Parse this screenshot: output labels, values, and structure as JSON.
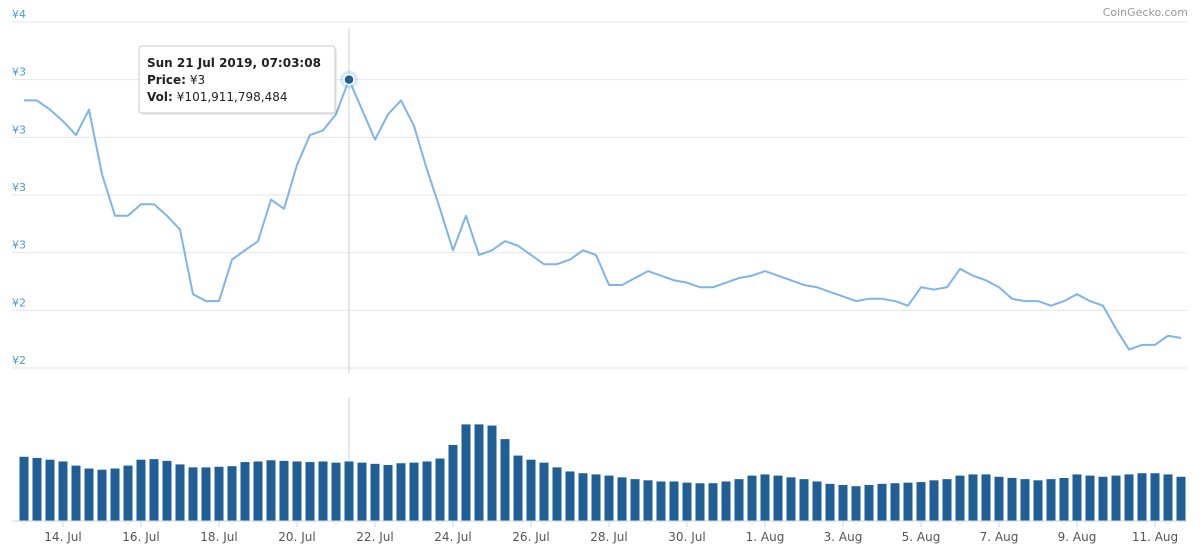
{
  "chart_data": {
    "type": "line",
    "credit": "CoinGecko.com",
    "categories": [
      null,
      null,
      null,
      "14. Jul",
      null,
      null,
      null,
      null,
      null,
      "16. Jul",
      null,
      null,
      null,
      null,
      null,
      "18. Jul",
      null,
      null,
      null,
      null,
      null,
      "20. Jul",
      null,
      null,
      null,
      null,
      null,
      "22. Jul",
      null,
      null,
      null,
      null,
      null,
      "24. Jul",
      null,
      null,
      null,
      null,
      null,
      "26. Jul",
      null,
      null,
      null,
      null,
      null,
      "28. Jul",
      null,
      null,
      null,
      null,
      null,
      "30. Jul",
      null,
      null,
      null,
      null,
      null,
      "1. Aug",
      null,
      null,
      null,
      null,
      null,
      "3. Aug",
      null,
      null,
      null,
      null,
      null,
      "5. Aug",
      null,
      null,
      null,
      null,
      null,
      "7. Aug",
      null,
      null,
      null,
      null,
      null,
      "9. Aug",
      null,
      null,
      null,
      null,
      null,
      "11. Aug",
      null,
      null
    ],
    "values": [
      3.16,
      3.16,
      3.12,
      3.07,
      3.01,
      3.12,
      2.84,
      2.66,
      2.66,
      2.71,
      2.71,
      2.66,
      2.6,
      2.32,
      2.29,
      2.29,
      2.47,
      2.51,
      2.55,
      2.73,
      2.69,
      2.88,
      3.01,
      3.03,
      3.1,
      3.25,
      3.12,
      2.99,
      3.1,
      3.16,
      3.05,
      2.86,
      2.69,
      2.51,
      2.66,
      2.49,
      2.51,
      2.55,
      2.53,
      2.49,
      2.45,
      2.45,
      2.47,
      2.51,
      2.49,
      2.36,
      2.36,
      2.39,
      2.42,
      2.4,
      2.38,
      2.37,
      2.35,
      2.35,
      2.37,
      2.39,
      2.4,
      2.42,
      2.4,
      2.38,
      2.36,
      2.35,
      2.33,
      2.31,
      2.29,
      2.3,
      2.3,
      2.29,
      2.27,
      2.35,
      2.34,
      2.35,
      2.43,
      2.4,
      2.38,
      2.35,
      2.3,
      2.29,
      2.29,
      2.27,
      2.29,
      2.32,
      2.29,
      2.27,
      2.17,
      2.08,
      2.1,
      2.1,
      2.14,
      2.13
    ],
    "color": "#7cb5ec",
    "ylim": [
      2.0,
      3.5
    ],
    "yticks": [
      {
        "value": 3.5,
        "label": "¥4"
      },
      {
        "value": 3.25,
        "label": "¥3"
      },
      {
        "value": 3.0,
        "label": "¥3"
      },
      {
        "value": 2.75,
        "label": "¥3"
      },
      {
        "value": 2.5,
        "label": "¥3"
      },
      {
        "value": 2.25,
        "label": "¥2"
      },
      {
        "value": 2.0,
        "label": "¥2"
      }
    ],
    "grid": true,
    "volume": {
      "type": "bar",
      "color": "#1f5f96",
      "ylim": [
        0,
        209000000000.0
      ],
      "values": [
        110000000000.0,
        108000000000.0,
        105000000000.0,
        102000000000.0,
        95000000000.0,
        90000000000.0,
        88000000000.0,
        90000000000.0,
        95000000000.0,
        105000000000.0,
        106000000000.0,
        103000000000.0,
        97000000000.0,
        92000000000.0,
        92000000000.0,
        93000000000.0,
        94000000000.0,
        101000000000.0,
        102000000000.0,
        104000000000.0,
        103000000000.0,
        102000000000.0,
        101000000000.0,
        102000000000.0,
        100000000000.0,
        102000000000.0,
        100000000000.0,
        98000000000.0,
        96000000000.0,
        99000000000.0,
        100000000000.0,
        102000000000.0,
        107000000000.0,
        130000000000.0,
        165000000000.0,
        165000000000.0,
        163000000000.0,
        140000000000.0,
        112000000000.0,
        105000000000.0,
        100000000000.0,
        92000000000.0,
        85000000000.0,
        82000000000.0,
        80000000000.0,
        78000000000.0,
        75000000000.0,
        72000000000.0,
        70000000000.0,
        68000000000.0,
        68000000000.0,
        66000000000.0,
        65000000000.0,
        65000000000.0,
        68000000000.0,
        72000000000.0,
        78000000000.0,
        80000000000.0,
        78000000000.0,
        75000000000.0,
        72000000000.0,
        68000000000.0,
        64000000000.0,
        62000000000.0,
        60000000000.0,
        62000000000.0,
        64000000000.0,
        65000000000.0,
        66000000000.0,
        67000000000.0,
        70000000000.0,
        72000000000.0,
        78000000000.0,
        80000000000.0,
        80000000000.0,
        76000000000.0,
        74000000000.0,
        72000000000.0,
        70000000000.0,
        72000000000.0,
        74000000000.0,
        80000000000.0,
        78000000000.0,
        76000000000.0,
        78000000000.0,
        80000000000.0,
        82000000000.0,
        82000000000.0,
        80000000000.0,
        76000000000.0
      ]
    },
    "tooltip": {
      "date": "Sun 21 Jul 2019, 07:03:08",
      "price_label": "Price:",
      "price": "¥3",
      "vol_label": "Vol:",
      "vol": "¥101,911,798,484"
    }
  }
}
